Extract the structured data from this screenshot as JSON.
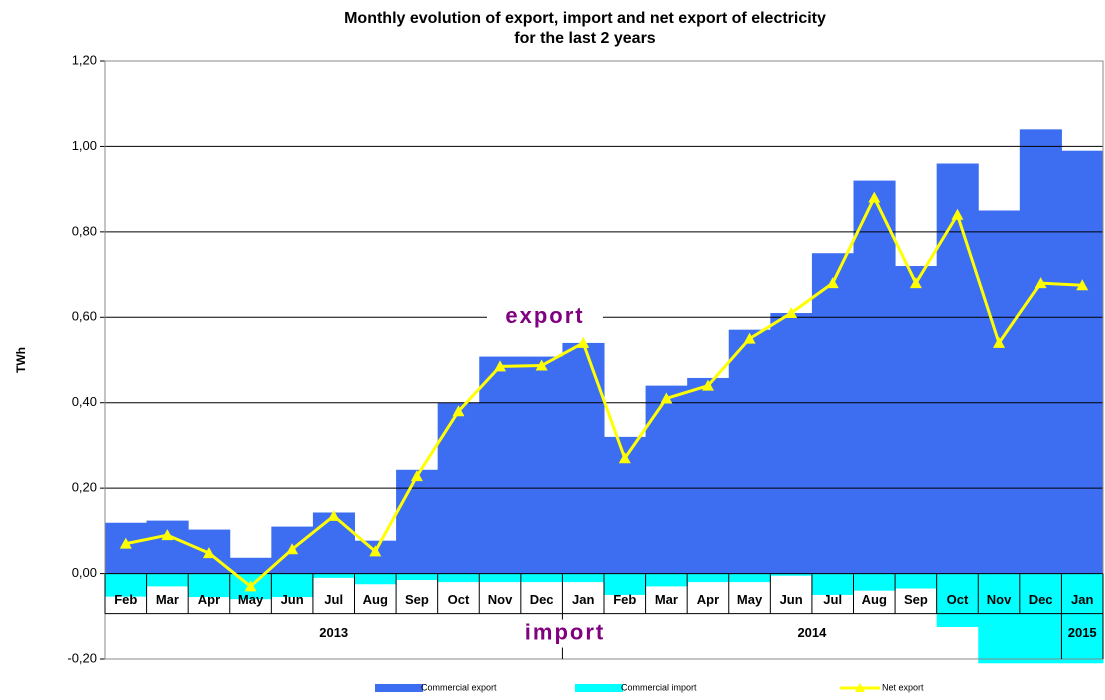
{
  "chart_data": {
    "type": "bar",
    "title": "Monthly evolution of export, import and net export of electricity",
    "subtitle": "for the last 2 years",
    "y_label": "TWh",
    "categories": [
      "Feb",
      "Mar",
      "Apr",
      "May",
      "Jun",
      "Jul",
      "Aug",
      "Sep",
      "Oct",
      "Nov",
      "Dec",
      "Jan",
      "Feb",
      "Mar",
      "Apr",
      "May",
      "Jun",
      "Jul",
      "Aug",
      "Sep",
      "Oct",
      "Nov",
      "Dec",
      "Jan"
    ],
    "years": [
      "2013",
      "2014",
      "2015"
    ],
    "annotations": [
      "export",
      "import"
    ],
    "ylim": [
      -0.2,
      1.2
    ],
    "yticks": [
      {
        "value": -0.2,
        "label": "-0,20"
      },
      {
        "value": 0,
        "label": "0,00"
      },
      {
        "value": 0.2,
        "label": "0,20"
      },
      {
        "value": 0.4,
        "label": "0,40"
      },
      {
        "value": 0.6,
        "label": "0,60"
      },
      {
        "value": 0.8,
        "label": "0,80"
      },
      {
        "value": 1,
        "label": "1,00"
      },
      {
        "value": 1.2,
        "label": "1,20"
      }
    ],
    "grid": true,
    "legend": "bottom",
    "series": [
      {
        "name": "Commercial export",
        "type": "bar",
        "color": "#3d6ef2",
        "values": [
          0.119,
          0.124,
          0.103,
          0.037,
          0.11,
          0.143,
          0.077,
          0.243,
          0.4,
          0.508,
          0.508,
          0.54,
          0.32,
          0.44,
          0.458,
          0.571,
          0.61,
          0.75,
          0.92,
          0.72,
          0.96,
          0.85,
          1.04,
          0.99
        ]
      },
      {
        "name": "Commercial import",
        "type": "bar",
        "color": "#00ffff",
        "values": [
          -0.054,
          -0.03,
          -0.055,
          -0.06,
          -0.055,
          -0.01,
          -0.025,
          -0.015,
          -0.02,
          -0.02,
          -0.02,
          -0.02,
          -0.05,
          -0.03,
          -0.02,
          -0.02,
          -0.005,
          -0.05,
          -0.04,
          -0.035,
          -0.125,
          -0.21,
          -0.21,
          -0.21
        ]
      },
      {
        "name": "Net export",
        "type": "line",
        "color": "#ffff00",
        "values": [
          0.07,
          0.09,
          0.048,
          -0.03,
          0.057,
          0.135,
          0.052,
          0.228,
          0.38,
          0.485,
          0.487,
          0.54,
          0.27,
          0.41,
          0.44,
          0.55,
          0.61,
          0.68,
          0.88,
          0.68,
          0.84,
          0.54,
          0.68,
          0.675
        ]
      }
    ]
  }
}
